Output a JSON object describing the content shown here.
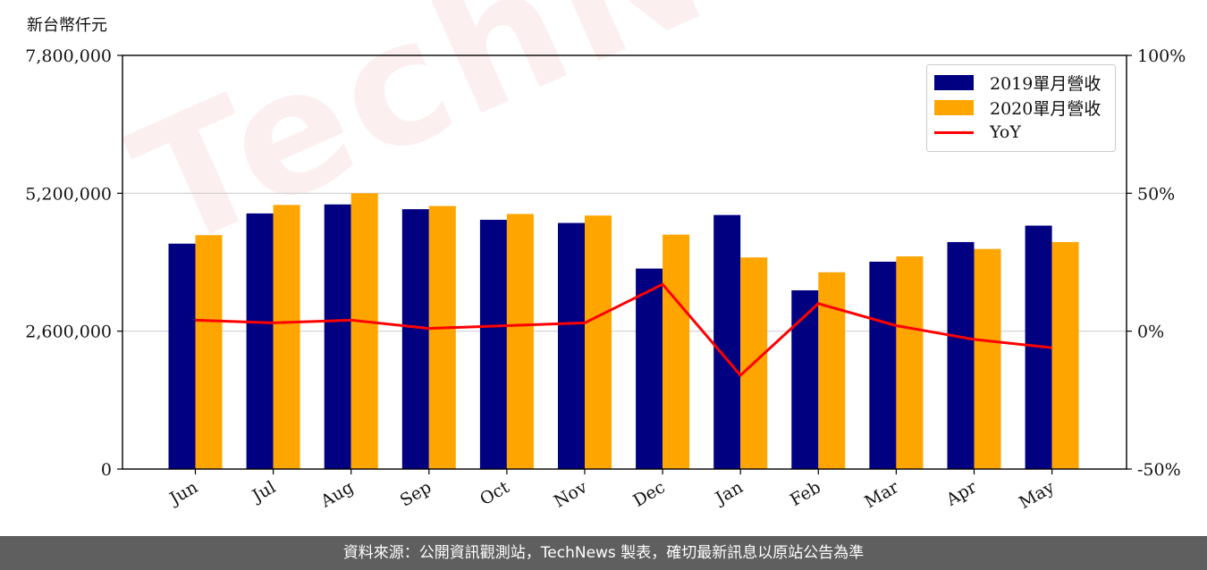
{
  "unit_label": "新台幣仟元",
  "watermark": "TechNews",
  "footer": "資料來源：公開資訊觀測站，TechNews 製表，確切最新訊息以原站公告為準",
  "colors": {
    "series_2019": "#000080",
    "series_2020": "#ffa500",
    "yoy": "#ff0000"
  },
  "legend": {
    "items": [
      "2019單月營收",
      "2020單月營收",
      "YoY"
    ]
  },
  "chart_data": {
    "type": "bar",
    "categories": [
      "Jun",
      "Jul",
      "Aug",
      "Sep",
      "Oct",
      "Nov",
      "Dec",
      "Jan",
      "Feb",
      "Mar",
      "Apr",
      "May"
    ],
    "series": [
      {
        "name": "2019單月營收",
        "values": [
          4250000,
          4820000,
          4990000,
          4900000,
          4700000,
          4640000,
          3780000,
          4790000,
          3370000,
          3910000,
          4280000,
          4590000
        ]
      },
      {
        "name": "2020單月營收",
        "values": [
          4410000,
          4980000,
          5200000,
          4960000,
          4810000,
          4780000,
          4420000,
          3990000,
          3710000,
          4010000,
          4150000,
          4280000
        ]
      }
    ],
    "line_series": {
      "name": "YoY",
      "axis": "right",
      "values": [
        4,
        3,
        4,
        1,
        2,
        3,
        17,
        -16,
        10,
        2,
        -3,
        -6
      ]
    },
    "ylim": [
      0,
      7800000
    ],
    "y_ticks": [
      "0",
      "2,600,000",
      "5,200,000",
      "7,800,000"
    ],
    "y_tick_values": [
      0,
      2600000,
      5200000,
      7800000
    ],
    "y2lim": [
      -50,
      100
    ],
    "y2_ticks": [
      "-50%",
      "0%",
      "50%",
      "100%"
    ],
    "y2_tick_values": [
      -50,
      0,
      50,
      100
    ],
    "grid": "horizontal",
    "legend_position": "top-right"
  }
}
